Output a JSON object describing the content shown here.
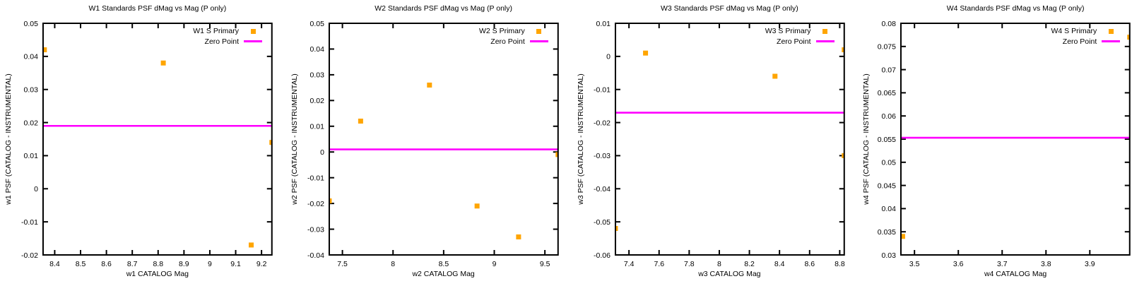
{
  "colors": {
    "marker": "#ffa500",
    "zero_line": "#ff00ff",
    "axis": "#000000",
    "text": "#000000",
    "background": "#ffffff"
  },
  "chart_data": [
    {
      "type": "scatter",
      "band": "W1",
      "title": "W1 Standards PSF dMag vs Mag (P only)",
      "xlabel": "w1 CATALOG Mag",
      "ylabel": "w1 PSF (CATALOG - INSTRUMENTAL)",
      "xlim": [
        8.355,
        9.24
      ],
      "ylim": [
        -0.02,
        0.05
      ],
      "xticks": [
        8.4,
        8.5,
        8.6,
        8.7,
        8.8,
        8.9,
        9,
        9.1,
        9.2
      ],
      "xtick_labels": [
        "8.4",
        "8.5",
        "8.6",
        "8.7",
        "8.8",
        "8.9",
        "9",
        "9.1",
        "9.2"
      ],
      "yticks": [
        -0.02,
        -0.01,
        0,
        0.01,
        0.02,
        0.03,
        0.04,
        0.05
      ],
      "ytick_labels": [
        "-0.02",
        "-0.01",
        "0",
        "0.01",
        "0.02",
        "0.03",
        "0.04",
        "0.05"
      ],
      "grid": false,
      "legend_position": "top-right",
      "series": [
        {
          "name": "W1 S Primary",
          "marker": "square",
          "color": "#ffa500",
          "points": [
            [
              8.36,
              0.042
            ],
            [
              8.82,
              0.038
            ],
            [
              9.16,
              -0.017
            ],
            [
              9.24,
              0.014
            ]
          ]
        }
      ],
      "zero_point": {
        "label": "Zero Point",
        "color": "#ff00ff",
        "value": 0.019
      }
    },
    {
      "type": "scatter",
      "band": "W2",
      "title": "W2 Standards PSF dMag vs Mag (P only)",
      "xlabel": "w2 CATALOG Mag",
      "ylabel": "w2 PSF (CATALOG - INSTRUMENTAL)",
      "xlim": [
        7.37,
        9.63
      ],
      "ylim": [
        -0.04,
        0.05
      ],
      "xticks": [
        7.5,
        8,
        8.5,
        9,
        9.5
      ],
      "xtick_labels": [
        "7.5",
        "8",
        "8.5",
        "9",
        "9.5"
      ],
      "yticks": [
        -0.04,
        -0.03,
        -0.02,
        -0.01,
        0,
        0.01,
        0.02,
        0.03,
        0.04,
        0.05
      ],
      "ytick_labels": [
        "-0.04",
        "-0.03",
        "-0.02",
        "-0.01",
        "0",
        "0.01",
        "0.02",
        "0.03",
        "0.04",
        "0.05"
      ],
      "grid": false,
      "legend_position": "top-right",
      "series": [
        {
          "name": "W2 S Primary",
          "marker": "square",
          "color": "#ffa500",
          "points": [
            [
              7.37,
              -0.019
            ],
            [
              7.68,
              0.012
            ],
            [
              8.36,
              0.026
            ],
            [
              8.83,
              -0.021
            ],
            [
              9.24,
              -0.033
            ],
            [
              9.63,
              -0.001
            ]
          ]
        }
      ],
      "zero_point": {
        "label": "Zero Point",
        "color": "#ff00ff",
        "value": 0.001
      }
    },
    {
      "type": "scatter",
      "band": "W3",
      "title": "W3 Standards PSF dMag vs Mag (P only)",
      "xlabel": "w3 CATALOG Mag",
      "ylabel": "w3 PSF (CATALOG - INSTRUMENTAL)",
      "xlim": [
        7.31,
        8.83
      ],
      "ylim": [
        -0.06,
        0.01
      ],
      "xticks": [
        7.4,
        7.6,
        7.8,
        8,
        8.2,
        8.4,
        8.6,
        8.8
      ],
      "xtick_labels": [
        "7.4",
        "7.6",
        "7.8",
        "8",
        "8.2",
        "8.4",
        "8.6",
        "8.8"
      ],
      "yticks": [
        -0.06,
        -0.05,
        -0.04,
        -0.03,
        -0.02,
        -0.01,
        0,
        0.01
      ],
      "ytick_labels": [
        "-0.06",
        "-0.05",
        "-0.04",
        "-0.03",
        "-0.02",
        "-0.01",
        "0",
        "0.01"
      ],
      "grid": false,
      "legend_position": "top-right",
      "series": [
        {
          "name": "W3 S Primary",
          "marker": "square",
          "color": "#ffa500",
          "points": [
            [
              7.31,
              -0.052
            ],
            [
              7.51,
              0.001
            ],
            [
              8.37,
              -0.006
            ],
            [
              8.83,
              0.002
            ],
            [
              8.83,
              -0.03
            ]
          ]
        }
      ],
      "zero_point": {
        "label": "Zero Point",
        "color": "#ff00ff",
        "value": -0.017
      }
    },
    {
      "type": "scatter",
      "band": "W4",
      "title": "W4 Standards PSF dMag vs Mag (P only)",
      "xlabel": "w4 CATALOG Mag",
      "ylabel": "w4 PSF (CATALOG - INSTRUMENTAL)",
      "xlim": [
        3.469,
        3.991
      ],
      "ylim": [
        0.03,
        0.08
      ],
      "xticks": [
        3.5,
        3.6,
        3.7,
        3.8,
        3.9
      ],
      "xtick_labels": [
        "3.5",
        "3.6",
        "3.7",
        "3.8",
        "3.9"
      ],
      "yticks": [
        0.03,
        0.035,
        0.04,
        0.045,
        0.05,
        0.055,
        0.06,
        0.065,
        0.07,
        0.075,
        0.08
      ],
      "ytick_labels": [
        "0.03",
        "0.035",
        "0.04",
        "0.045",
        "0.05",
        "0.055",
        "0.06",
        "0.065",
        "0.07",
        "0.075",
        "0.08"
      ],
      "grid": false,
      "legend_position": "top-right",
      "series": [
        {
          "name": "W4 S Primary",
          "marker": "square",
          "color": "#ffa500",
          "points": [
            [
              3.473,
              0.034
            ],
            [
              3.991,
              0.077
            ]
          ]
        }
      ],
      "zero_point": {
        "label": "Zero Point",
        "color": "#ff00ff",
        "value": 0.0553
      }
    }
  ]
}
